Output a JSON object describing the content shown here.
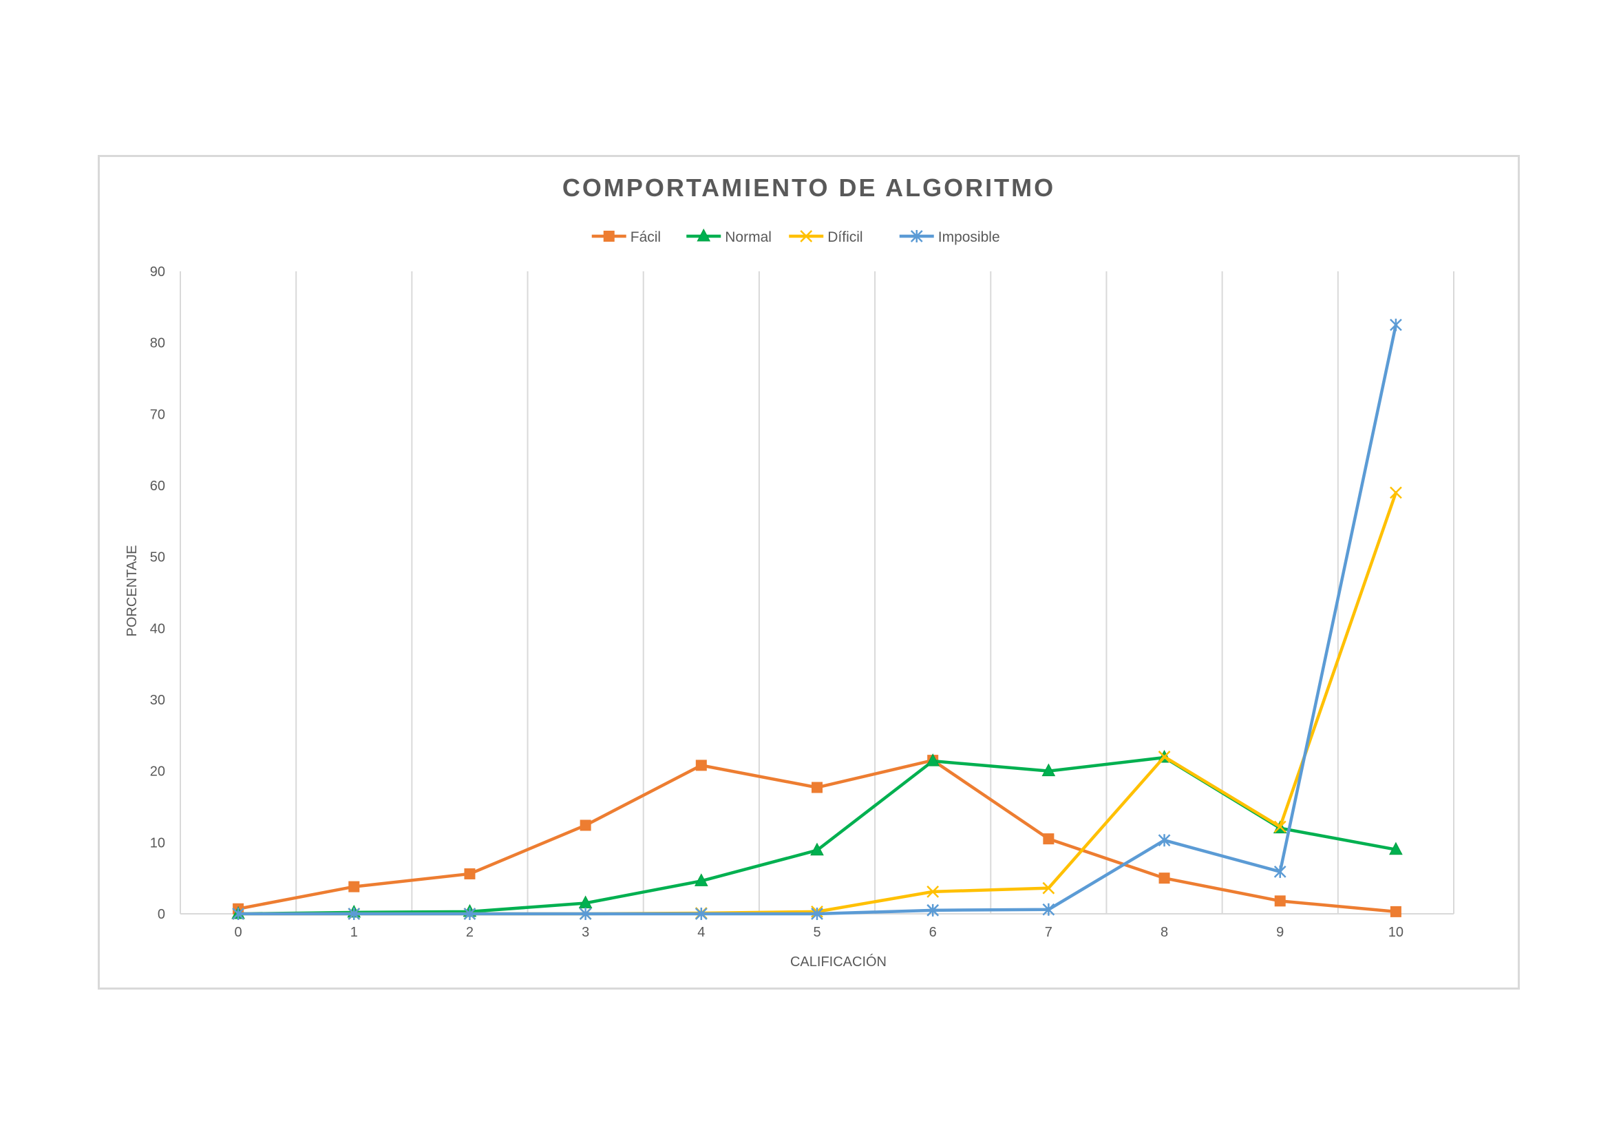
{
  "chart_data": {
    "type": "line",
    "title": "COMPORTAMIENTO DE ALGORITMO",
    "xlabel": "CALIFICACIÓN",
    "ylabel": "PORCENTAJE",
    "x": [
      "0",
      "1",
      "2",
      "3",
      "4",
      "5",
      "6",
      "7",
      "8",
      "9",
      "10"
    ],
    "ylim": [
      0,
      90
    ],
    "yticks": [
      "0",
      "10",
      "20",
      "30",
      "40",
      "50",
      "60",
      "70",
      "80",
      "90"
    ],
    "grid": "vertical",
    "legend_position": "top",
    "series": [
      {
        "name": "Fácil",
        "color": "#ED7D31",
        "marker": "square",
        "values": [
          0.7,
          3.8,
          5.6,
          12.4,
          20.8,
          17.7,
          21.5,
          10.5,
          5.0,
          1.8,
          0.3
        ]
      },
      {
        "name": "Normal",
        "color": "#00B050",
        "marker": "triangle",
        "values": [
          0,
          0.2,
          0.3,
          1.5,
          4.6,
          8.9,
          21.4,
          20.0,
          21.9,
          12.0,
          9.0
        ]
      },
      {
        "name": "Díficil",
        "color": "#FFC000",
        "marker": "x",
        "values": [
          0,
          0,
          0,
          0,
          0.1,
          0.3,
          3.1,
          3.6,
          22.0,
          12.2,
          59.0
        ]
      },
      {
        "name": "Imposible",
        "color": "#5B9BD5",
        "marker": "star",
        "values": [
          0,
          0,
          0,
          0,
          0,
          0,
          0.5,
          0.6,
          10.3,
          5.9,
          82.5
        ]
      }
    ]
  }
}
